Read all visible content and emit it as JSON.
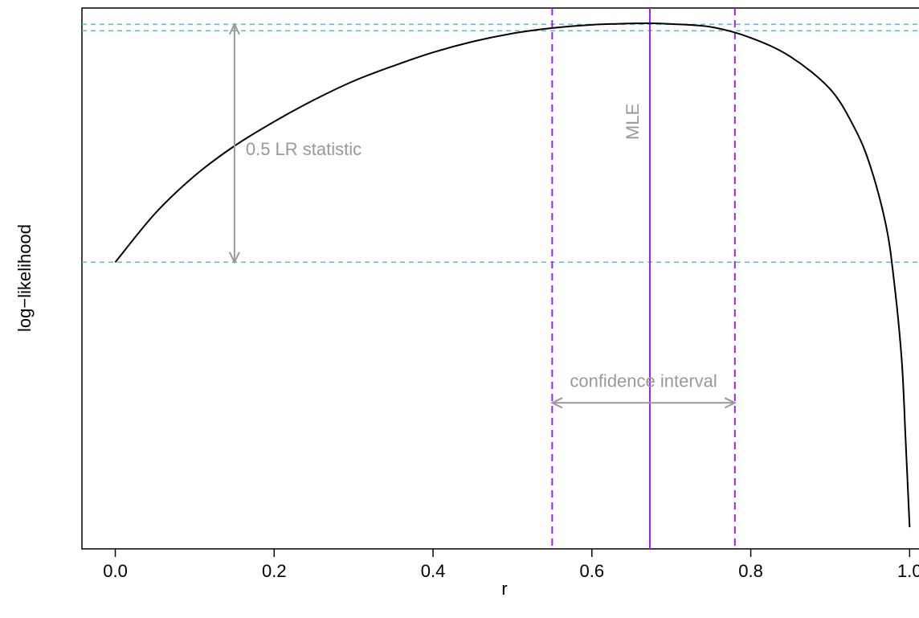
{
  "chart_data": {
    "type": "line",
    "xlabel": "r",
    "ylabel": "log−likelihood",
    "x_ticks": [
      0.0,
      0.2,
      0.4,
      0.6,
      0.8,
      1.0
    ],
    "x_tick_labels": [
      "0.0",
      "0.2",
      "0.4",
      "0.6",
      "0.8",
      "1.0"
    ],
    "xlim": [
      -0.042,
      1.03
    ],
    "ylim": [
      0.0,
      1.0
    ],
    "y_scale": "relative (no tick labels shown)",
    "mle": 0.673,
    "ci": [
      0.55,
      0.78
    ],
    "max_loglik": 0.97,
    "threshold": 0.53,
    "curve": {
      "x": [
        0.0,
        0.05,
        0.1,
        0.15,
        0.2,
        0.25,
        0.3,
        0.35,
        0.4,
        0.45,
        0.5,
        0.55,
        0.6,
        0.65,
        0.673,
        0.7,
        0.75,
        0.8,
        0.85,
        0.9,
        0.93,
        0.95,
        0.97,
        0.98,
        0.99,
        0.995,
        1.0
      ],
      "y": [
        0.53,
        0.62,
        0.69,
        0.745,
        0.79,
        0.83,
        0.865,
        0.893,
        0.918,
        0.938,
        0.953,
        0.963,
        0.969,
        0.9715,
        0.972,
        0.9705,
        0.965,
        0.945,
        0.91,
        0.85,
        0.78,
        0.71,
        0.6,
        0.5,
        0.35,
        0.2,
        0.04
      ]
    },
    "annotations": {
      "lr": "0.5 LR statistic",
      "mle": "MLE",
      "ci": "confidence interval"
    },
    "grid": false,
    "legend": "none",
    "colors": {
      "curve": "#000000",
      "mle_line": "#a020f0",
      "ci_lines": "#a020f0",
      "hlines": "#6fb7c3",
      "annotation": "#999999"
    }
  }
}
